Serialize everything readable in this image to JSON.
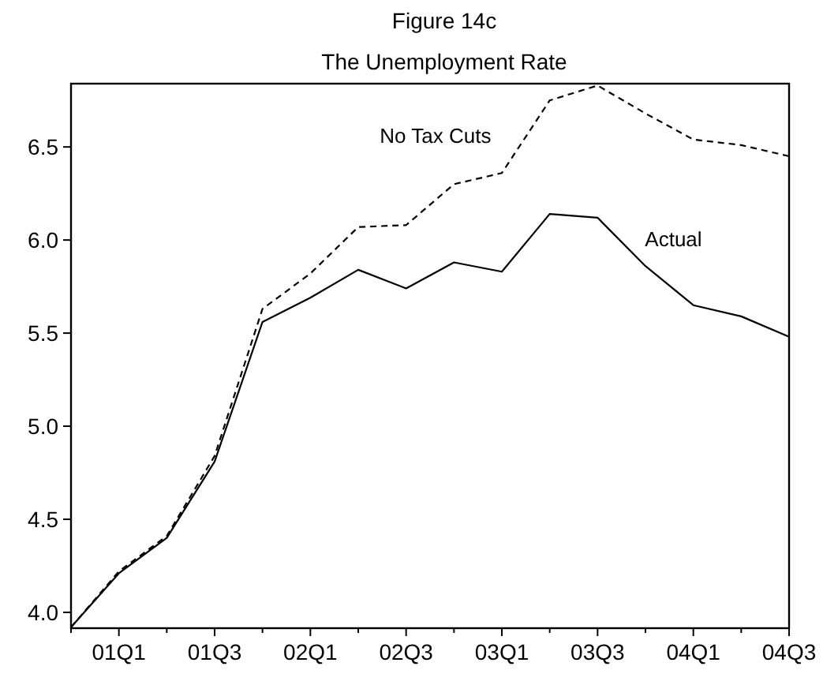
{
  "chart_data": {
    "type": "line",
    "title": "Figure 14c",
    "subtitle": "The Unemployment Rate",
    "categories": [
      null,
      "01Q1",
      null,
      "01Q3",
      null,
      "02Q1",
      null,
      "02Q3",
      null,
      "03Q1",
      null,
      "03Q3",
      null,
      "04Q1",
      null,
      "04Q3"
    ],
    "series": [
      {
        "name": "Actual",
        "color": "#000000",
        "line_style": "solid",
        "values": [
          3.92,
          4.21,
          4.4,
          4.81,
          5.56,
          5.69,
          5.84,
          5.74,
          5.88,
          5.83,
          6.14,
          6.12,
          5.86,
          5.65,
          5.59,
          5.48
        ]
      },
      {
        "name": "No Tax Cuts",
        "color": "#000000",
        "line_style": "dashed",
        "values": [
          3.92,
          4.22,
          4.41,
          4.84,
          5.63,
          5.82,
          6.07,
          6.08,
          6.3,
          6.36,
          6.75,
          6.83,
          6.68,
          6.54,
          6.51,
          6.45
        ]
      }
    ],
    "ylim": [
      3.915,
      6.84
    ],
    "yticks": [
      {
        "value": 4,
        "label": "4.0"
      },
      4.5,
      {
        "value": 5,
        "label": "5.0"
      },
      5.5,
      {
        "value": 6,
        "label": "6.0"
      },
      6.5
    ],
    "grid": false,
    "legend": false,
    "marker": "none"
  }
}
